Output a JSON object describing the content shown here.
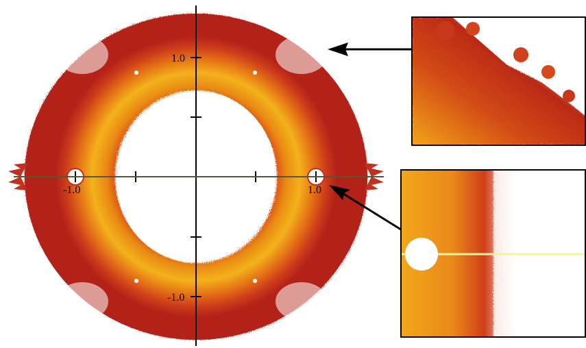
{
  "figure": {
    "axis_labels": {
      "x_neg": "-1.0",
      "x_pos": "1.0",
      "y_pos": "1.0",
      "y_neg": "-1.0"
    },
    "colors": {
      "outer_red": "#c0281c",
      "mid_orange": "#e06a14",
      "inner_yellow": "#f3b21b",
      "dark_red": "#a41e16",
      "pale_yellow_line": "#f6f2a0",
      "frame": "#000000"
    },
    "insets": [
      {
        "id": "top-right-zoom",
        "shows": "outer boundary fractal detail (upper right)"
      },
      {
        "id": "bottom-right-zoom",
        "shows": "hole at 1.0 on real axis with fractal spikes"
      }
    ]
  }
}
